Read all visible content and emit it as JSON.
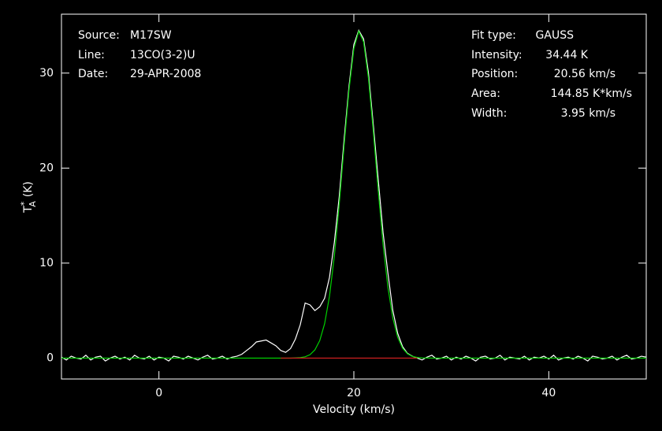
{
  "chart_data": {
    "type": "line",
    "xlabel": "Velocity (km/s)",
    "ylabel": {
      "symbol": "T",
      "sub": "A",
      "sup": "*",
      "unit": "(K)"
    },
    "xlim": [
      -10,
      50
    ],
    "ylim": [
      -2.2,
      36.2
    ],
    "xticks": [
      0,
      20,
      40
    ],
    "yticks": [
      0,
      10,
      20,
      30
    ],
    "annotations_left": [
      {
        "label": "Source:",
        "value": "M17SW"
      },
      {
        "label": "Line:",
        "value": "13CO(3-2)U"
      },
      {
        "label": "Date:",
        "value": "29-APR-2008"
      }
    ],
    "annotations_right": [
      {
        "label": "Fit type:",
        "value": "GAUSS"
      },
      {
        "label": "Intensity:",
        "value": "34.44 K"
      },
      {
        "label": "Position:",
        "value": "20.56 km/s"
      },
      {
        "label": "Area:",
        "value": "144.85 K*km/s"
      },
      {
        "label": "Width:",
        "value": "3.95 km/s"
      }
    ],
    "series": [
      {
        "color": "#ffffff",
        "x": [
          -10,
          -9.5,
          -9,
          -8.5,
          -8,
          -7.5,
          -7,
          -6.5,
          -6,
          -5.5,
          -5,
          -4.5,
          -4,
          -3.5,
          -3,
          -2.5,
          -2,
          -1.5,
          -1,
          -0.5,
          0,
          0.5,
          1,
          1.5,
          2,
          2.5,
          3,
          3.5,
          4,
          4.5,
          5,
          5.5,
          6,
          6.5,
          7,
          7.5,
          8,
          8.5,
          9,
          9.5,
          10,
          10.5,
          11,
          11.5,
          12,
          12.5,
          13,
          13.5,
          14,
          14.5,
          15,
          15.5,
          16,
          16.5,
          17,
          17.5,
          18,
          18.5,
          19,
          19.5,
          20,
          20.5,
          21,
          21.5,
          22,
          22.5,
          23,
          23.5,
          24,
          24.5,
          25,
          25.5,
          26,
          26.5,
          27,
          27.5,
          28,
          28.5,
          29,
          29.5,
          30,
          30.5,
          31,
          31.5,
          32,
          32.5,
          33,
          33.5,
          34,
          34.5,
          35,
          35.5,
          36,
          36.5,
          37,
          37.5,
          38,
          38.5,
          39,
          39.5,
          40,
          40.5,
          41,
          41.5,
          42,
          42.5,
          43,
          43.5,
          44,
          44.5,
          45,
          45.5,
          46,
          46.5,
          47,
          47.5,
          48,
          48.5,
          49,
          49.5,
          50
        ],
        "values": [
          0.1,
          -0.2,
          0.2,
          0.0,
          -0.1,
          0.3,
          -0.2,
          0.1,
          0.2,
          -0.3,
          0.0,
          0.2,
          -0.1,
          0.1,
          -0.2,
          0.3,
          0.0,
          -0.1,
          0.2,
          -0.2,
          0.1,
          0.0,
          -0.3,
          0.2,
          0.1,
          -0.1,
          0.2,
          0.0,
          -0.2,
          0.1,
          0.3,
          -0.1,
          0.0,
          0.2,
          -0.1,
          0.1,
          0.2,
          0.4,
          0.8,
          1.2,
          1.7,
          1.8,
          1.9,
          1.6,
          1.3,
          0.8,
          0.6,
          1.0,
          2.0,
          3.5,
          5.8,
          5.6,
          5.0,
          5.4,
          6.3,
          8.5,
          12.2,
          17.0,
          23.0,
          28.6,
          33.0,
          34.5,
          33.6,
          30.0,
          24.5,
          18.8,
          13.2,
          8.9,
          5.0,
          2.6,
          1.2,
          0.5,
          0.2,
          0.0,
          -0.2,
          0.1,
          0.3,
          -0.1,
          0.0,
          0.2,
          -0.2,
          0.1,
          -0.1,
          0.2,
          0.0,
          -0.3,
          0.1,
          0.2,
          -0.1,
          0.0,
          0.3,
          -0.2,
          0.1,
          0.0,
          -0.1,
          0.2,
          -0.2,
          0.1,
          0.0,
          0.2,
          -0.1,
          0.3,
          -0.2,
          0.0,
          0.1,
          -0.1,
          0.2,
          0.0,
          -0.3,
          0.2,
          0.1,
          -0.1,
          0.0,
          0.2,
          -0.2,
          0.1,
          0.3,
          -0.1,
          0.0,
          0.2,
          0.1
        ]
      },
      {
        "color": "#00d000",
        "x": [
          -10,
          13,
          13.5,
          14,
          14.5,
          15,
          15.5,
          16,
          16.5,
          17,
          17.5,
          18,
          18.5,
          19,
          19.5,
          20,
          20.5,
          21,
          21.5,
          22,
          22.5,
          23,
          23.5,
          24,
          24.5,
          25,
          25.5,
          26,
          26.5,
          27,
          27.5,
          28,
          50
        ],
        "values": [
          0,
          0,
          0,
          0.02,
          0.05,
          0.14,
          0.36,
          0.86,
          1.84,
          3.62,
          6.52,
          10.74,
          16.2,
          22.35,
          28.2,
          32.57,
          34.42,
          33.28,
          29.44,
          23.83,
          17.64,
          11.95,
          7.41,
          4.2,
          2.18,
          1.04,
          0.45,
          0.18,
          0.07,
          0.02,
          0.01,
          0,
          0
        ]
      },
      {
        "color": "#d02020",
        "x": [
          12.5,
          26.5
        ],
        "values": [
          0,
          0
        ]
      }
    ]
  }
}
